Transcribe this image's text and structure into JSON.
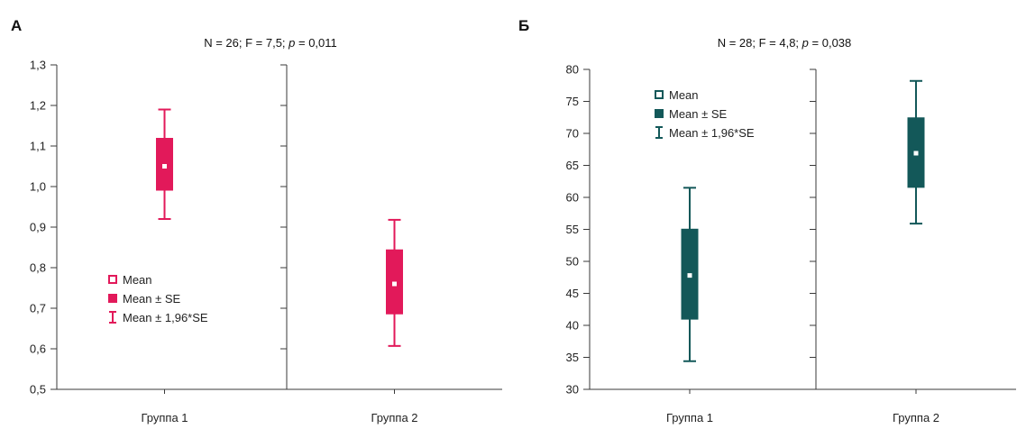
{
  "chart_data": [
    {
      "type": "box",
      "panel_label": "А",
      "title": "N = 26; F = 7,5; p = 0,011",
      "title_parts": [
        "N = 26; F = 7,5; ",
        "p",
        " = 0,011"
      ],
      "categories": [
        "Группа 1",
        "Группа 2"
      ],
      "ylim": [
        0.5,
        1.3
      ],
      "yticks": [
        0.5,
        0.6,
        0.7,
        0.8,
        0.9,
        1.0,
        1.1,
        1.2,
        1.3
      ],
      "ytick_labels": [
        "0,5",
        "0,6",
        "0,7",
        "0,8",
        "0,9",
        "1,0",
        "1,1",
        "1,2",
        "1,3"
      ],
      "series": [
        {
          "group": "Группа 1",
          "mean": 1.05,
          "se_low": 0.99,
          "se_high": 1.12,
          "ci_low": 0.92,
          "ci_high": 1.19
        },
        {
          "group": "Группа 2",
          "mean": 0.76,
          "se_low": 0.685,
          "se_high": 0.845,
          "ci_low": 0.607,
          "ci_high": 0.918
        }
      ],
      "color": "#e2195a",
      "legend": [
        "Mean",
        "Mean ± SE",
        "Mean ± 1,96*SE"
      ],
      "legend_position": "bottom-left of Группа 1 panel",
      "grid": false
    },
    {
      "type": "box",
      "panel_label": "Б",
      "title": "N = 28; F = 4,8; p = 0,038",
      "title_parts": [
        "N = 28; F = 4,8; ",
        "p",
        " = 0,038"
      ],
      "categories": [
        "Группа 1",
        "Группа 2"
      ],
      "ylim": [
        30,
        80
      ],
      "yticks": [
        30,
        35,
        40,
        45,
        50,
        55,
        60,
        65,
        70,
        75,
        80
      ],
      "ytick_labels": [
        "30",
        "35",
        "40",
        "45",
        "50",
        "55",
        "60",
        "65",
        "70",
        "75",
        "80"
      ],
      "series": [
        {
          "group": "Группа 1",
          "mean": 47.8,
          "se_low": 40.9,
          "se_high": 55.1,
          "ci_low": 34.4,
          "ci_high": 61.5
        },
        {
          "group": "Группа 2",
          "mean": 66.9,
          "se_low": 61.5,
          "se_high": 72.5,
          "ci_low": 55.9,
          "ci_high": 78.2
        }
      ],
      "color": "#135859",
      "legend": [
        "Mean",
        "Mean ± SE",
        "Mean ± 1,96*SE"
      ],
      "legend_position": "top-left of Группа 1 panel",
      "grid": false
    }
  ]
}
